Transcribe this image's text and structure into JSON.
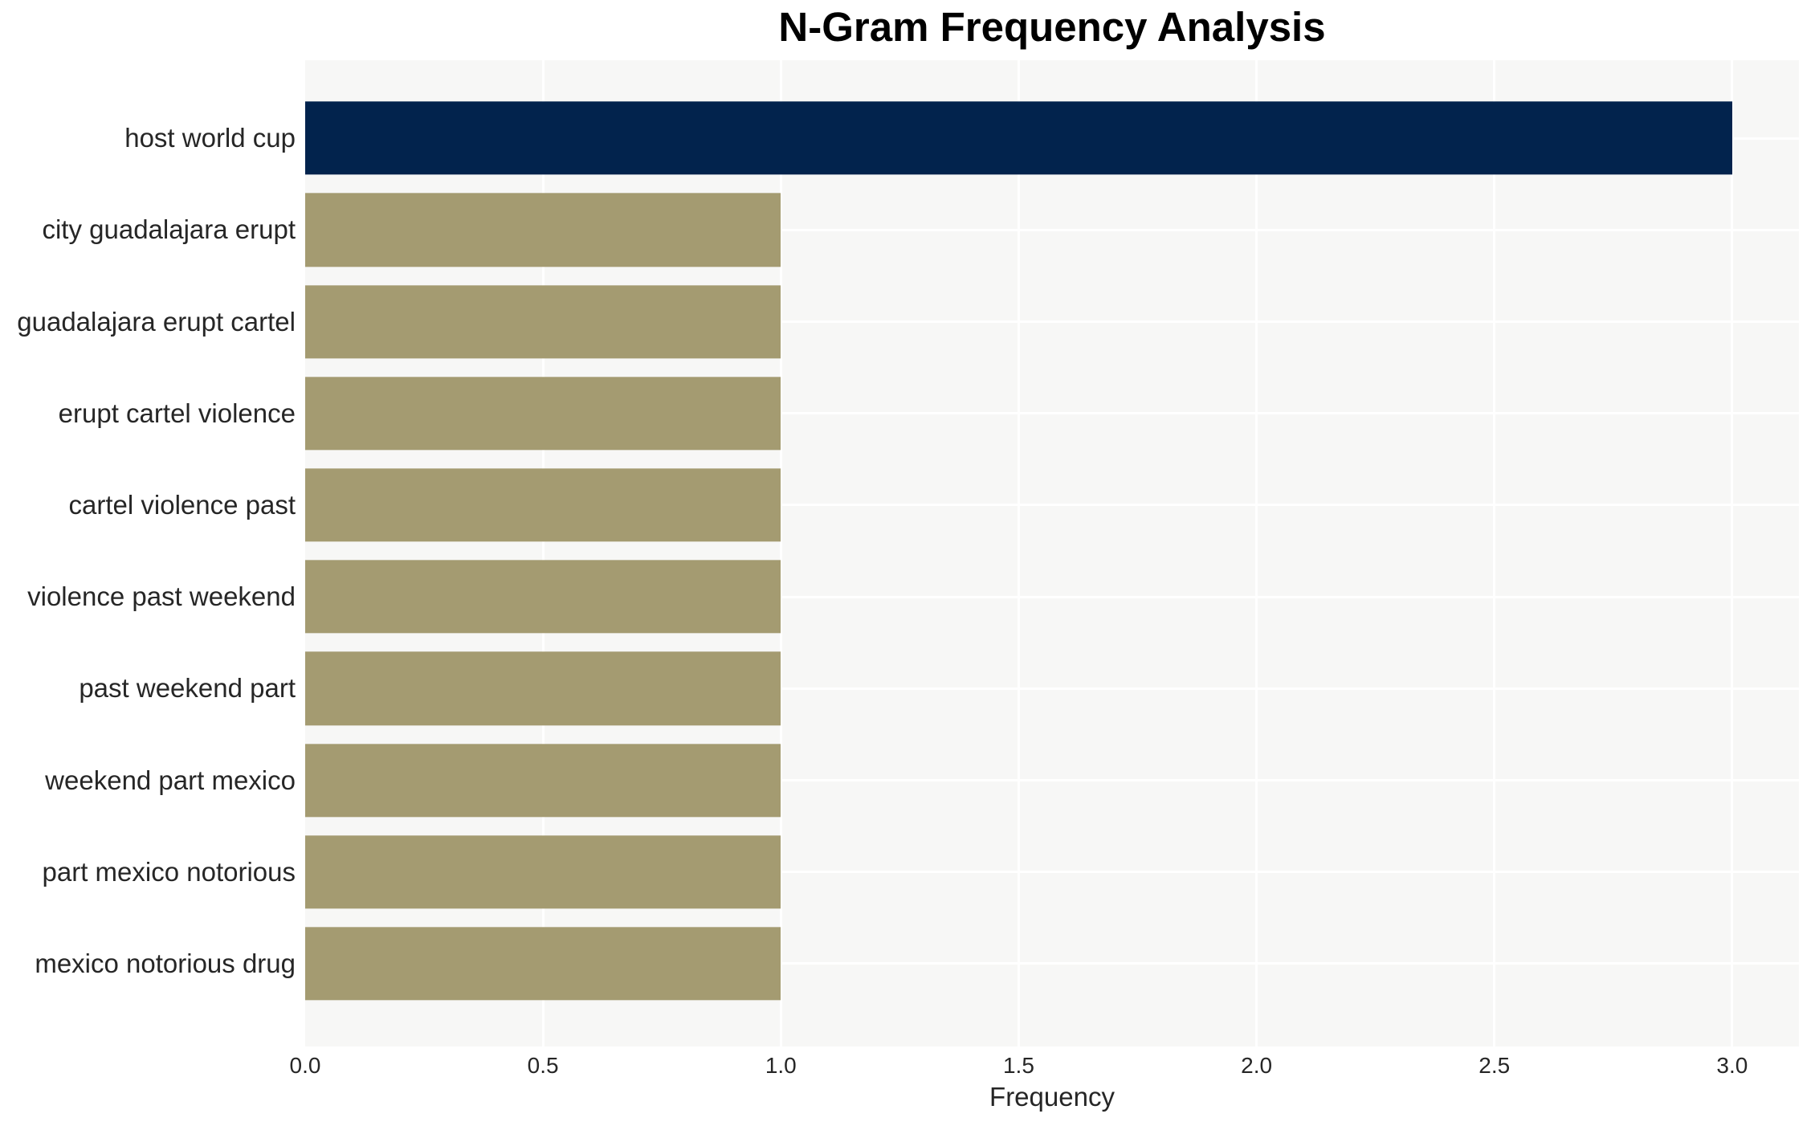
{
  "chart_data": {
    "type": "bar",
    "orientation": "horizontal",
    "title": "N-Gram Frequency Analysis",
    "xlabel": "Frequency",
    "ylabel": "",
    "categories": [
      "host world cup",
      "city guadalajara erupt",
      "guadalajara erupt cartel",
      "erupt cartel violence",
      "cartel violence past",
      "violence past weekend",
      "past weekend part",
      "weekend part mexico",
      "part mexico notorious",
      "mexico notorious drug"
    ],
    "values": [
      3,
      1,
      1,
      1,
      1,
      1,
      1,
      1,
      1,
      1
    ],
    "bar_colors": [
      "#02234d",
      "#a49b71",
      "#a49b71",
      "#a49b71",
      "#a49b71",
      "#a49b71",
      "#a49b71",
      "#a49b71",
      "#a49b71",
      "#a49b71"
    ],
    "xlim": [
      0,
      3.14
    ],
    "xtick_values": [
      0,
      0.5,
      1.0,
      1.5,
      2.0,
      2.5,
      3.0
    ],
    "xtick_labels": [
      "0.0",
      "0.5",
      "1.0",
      "1.5",
      "2.0",
      "2.5",
      "3.0"
    ],
    "grid": true,
    "legend_position": "none",
    "colors": {
      "plot_background": "#f7f7f6",
      "gridline": "#ffffff",
      "tick_text": "#262626",
      "title_text": "#000000"
    }
  }
}
